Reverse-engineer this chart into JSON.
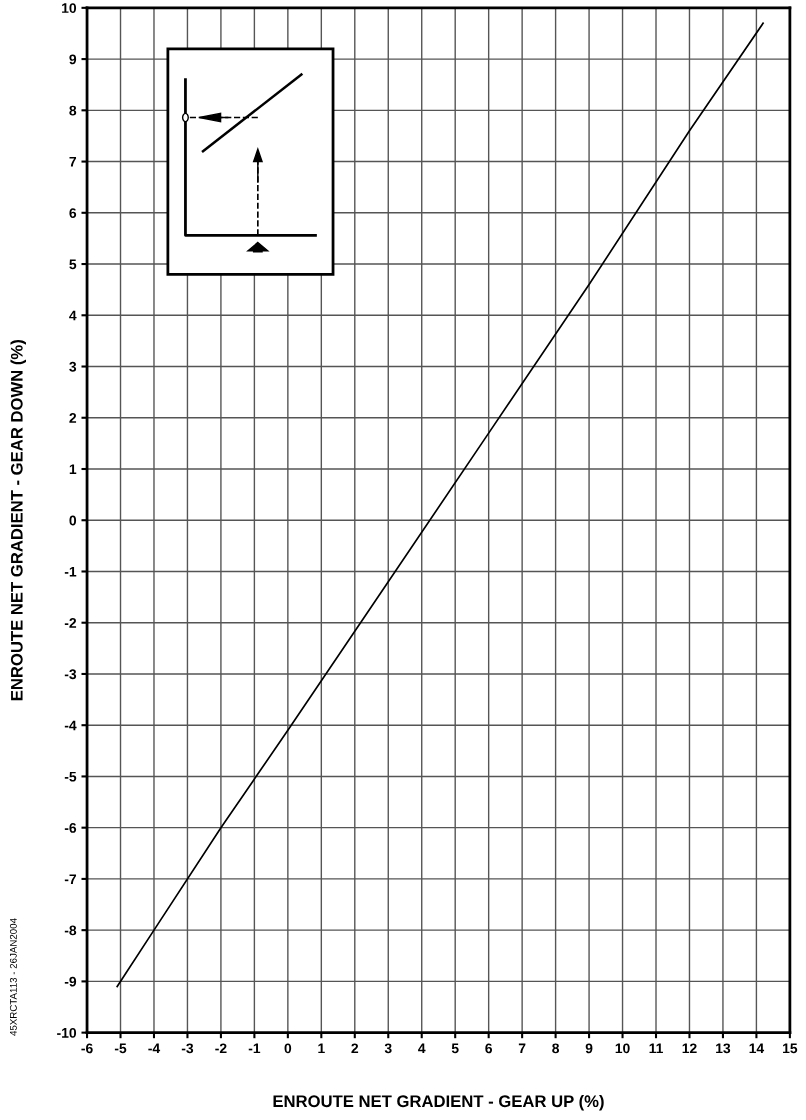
{
  "chart_data": {
    "type": "line",
    "xlabel": "ENROUTE NET GRADIENT - GEAR UP (%)",
    "ylabel": "ENROUTE NET GRADIENT - GEAR DOWN (%)",
    "annotations": [
      "45XRCTA113 - 26JAN2004"
    ],
    "x": [
      -5.1,
      -4,
      -2,
      0,
      3,
      6,
      9,
      12,
      14.2
    ],
    "series": [
      {
        "color": "#000000",
        "values": [
          -9.1,
          -8,
          -6,
          -4.1,
          -1.2,
          1.7,
          4.6,
          7.6,
          9.7
        ]
      }
    ],
    "xlim": [
      -6,
      15
    ],
    "ylim": [
      -10,
      10
    ],
    "xticks": [
      -6,
      -5,
      -4,
      -3,
      -2,
      -1,
      0,
      1,
      2,
      3,
      4,
      5,
      6,
      7,
      8,
      9,
      10,
      11,
      12,
      13,
      14,
      15
    ],
    "yticks": [
      -10,
      -9,
      -8,
      -7,
      -6,
      -5,
      -4,
      -3,
      -2,
      -1,
      0,
      1,
      2,
      3,
      4,
      5,
      6,
      7,
      8,
      9,
      10
    ],
    "grid": true,
    "marker": "none",
    "line_style": "solid",
    "legend": false
  }
}
